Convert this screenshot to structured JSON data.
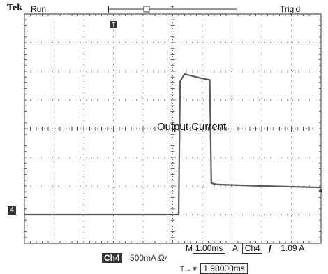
{
  "header": {
    "brand": "Tek",
    "run_state": "Run",
    "trigger_state": "Trig'd"
  },
  "status": {
    "timebase_prefix": "M",
    "timebase": "1.00ms",
    "trigger_prefix": "A",
    "trigger_source": "Ch4",
    "trigger_slope_symbol": "ʃ",
    "trigger_level": "1.09 A",
    "channel_label": "Ch4",
    "channel_scale": "500mA Ωʸ",
    "position_symbol": "T→▼",
    "position": "1.98000ms"
  },
  "colors": {
    "trace": "#5a5a5a",
    "grid": "#555555",
    "background": "#ffffff"
  },
  "chart_data": {
    "type": "line",
    "title": "",
    "annotation": "Output Current",
    "channel_marker": "4",
    "trigger_marker": "T",
    "units": {
      "x": "ms",
      "y": "A"
    },
    "xlim": [
      0,
      10
    ],
    "ylim": [
      0,
      8
    ],
    "divisions": {
      "x": 10,
      "y": 8
    },
    "grid": true,
    "series": [
      {
        "x": [
          0,
          5.2,
          5.25,
          5.4,
          6.0,
          6.25,
          6.3,
          6.5,
          8.0,
          10.0
        ],
        "y": [
          1.0,
          1.0,
          5.65,
          5.9,
          5.75,
          5.7,
          2.1,
          2.05,
          2.0,
          1.95
        ]
      }
    ]
  }
}
